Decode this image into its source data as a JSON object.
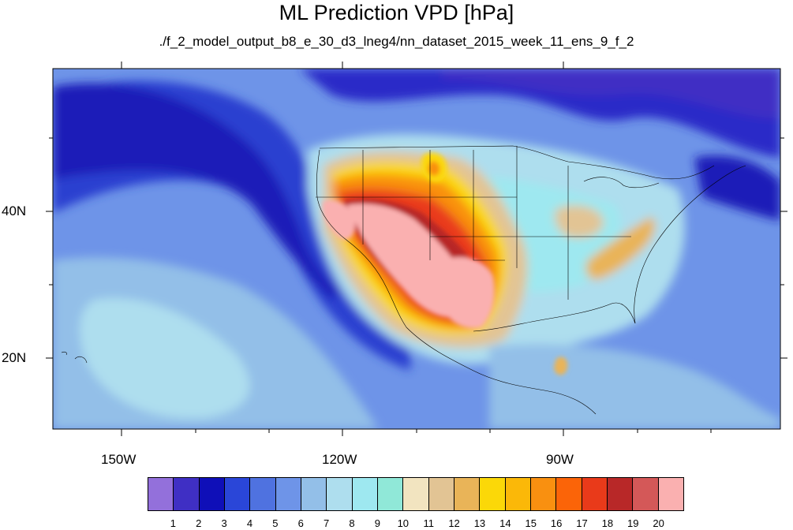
{
  "title": "ML Prediction VPD [hPa]",
  "subtitle": "./f_2_model_output_b8_e_30_d3_lneg4/nn_dataset_2015_week_11_ens_9_f_2",
  "lat_ticks": [
    "40N",
    "20N"
  ],
  "lon_ticks": [
    "150W",
    "120W",
    "90W"
  ],
  "colorbar": {
    "labels": [
      "1",
      "2",
      "3",
      "4",
      "5",
      "6",
      "7",
      "8",
      "9",
      "10",
      "11",
      "12",
      "13",
      "14",
      "15",
      "16",
      "17",
      "18",
      "19",
      "20"
    ],
    "colors": [
      "#9370db",
      "#3f2fc4",
      "#0f0fb8",
      "#2a46d8",
      "#4f72e0",
      "#6e94e8",
      "#93bfe8",
      "#aedeee",
      "#9ee8f0",
      "#90e8d8",
      "#f2e4c0",
      "#e2c494",
      "#e9b458",
      "#fbd808",
      "#fbb808",
      "#f99010",
      "#fb6408",
      "#e93a1a",
      "#b82828",
      "#d45858",
      "#fab0b0"
    ]
  },
  "field_colors": {
    "ocean_deep": "#1a24c8",
    "ocean": "#3a5ad8",
    "mid": "#6e94e8",
    "light": "#93bfe8",
    "pale": "#aedeee",
    "cyan": "#9ee8f0",
    "tan": "#e2c494",
    "yellow": "#fbd808",
    "orange": "#f99010",
    "red": "#e93a1a",
    "darkred": "#b82828",
    "pink": "#fab0b0"
  }
}
